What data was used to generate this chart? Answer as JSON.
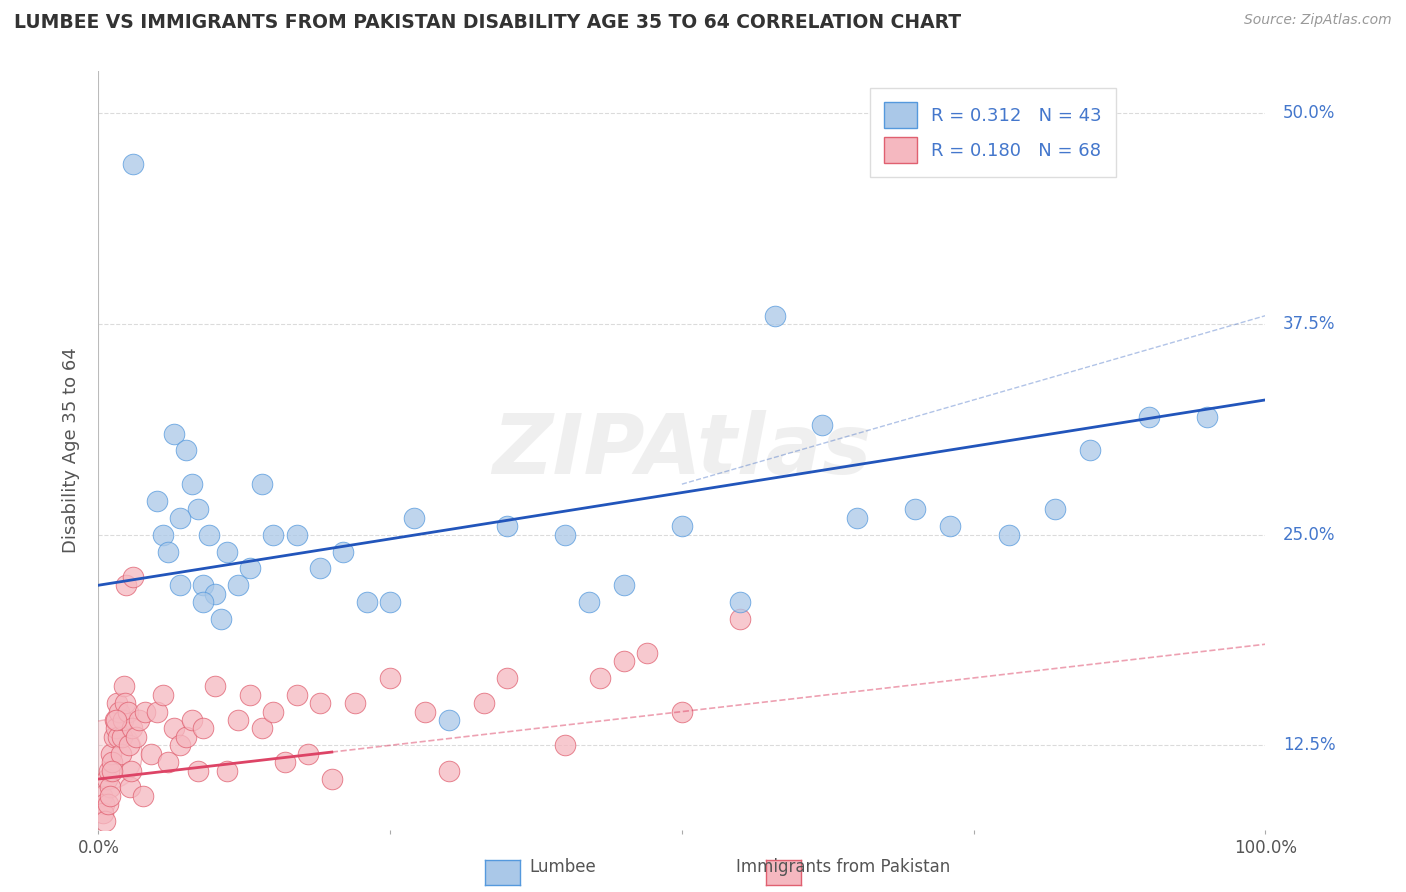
{
  "title": "LUMBEE VS IMMIGRANTS FROM PAKISTAN DISABILITY AGE 35 TO 64 CORRELATION CHART",
  "source": "Source: ZipAtlas.com",
  "ylabel": "Disability Age 35 to 64",
  "xlim": [
    0,
    100
  ],
  "ylim": [
    7.5,
    52.5
  ],
  "xticks": [
    0,
    25,
    50,
    75,
    100
  ],
  "xtick_labels": [
    "0.0%",
    "",
    "",
    "",
    "100.0%"
  ],
  "yticks": [
    12.5,
    25.0,
    37.5,
    50.0
  ],
  "ytick_labels": [
    "12.5%",
    "25.0%",
    "37.5%",
    "50.0%"
  ],
  "background_color": "#ffffff",
  "grid_color": "#cccccc",
  "lumbee_color": "#aac8e8",
  "pakistan_color": "#f5b8c0",
  "lumbee_edge_color": "#5599dd",
  "pakistan_edge_color": "#e06070",
  "lumbee_line_color": "#2255bb",
  "pakistan_line_color": "#dd4466",
  "label_color": "#4477cc",
  "lumbee_R": 0.312,
  "lumbee_N": 43,
  "pakistan_R": 0.18,
  "pakistan_N": 68,
  "watermark": "ZIPAtlas",
  "lumbee_x": [
    3.0,
    5.0,
    5.5,
    6.5,
    7.0,
    7.5,
    8.0,
    8.5,
    9.0,
    9.5,
    10.0,
    10.5,
    11.0,
    12.0,
    13.0,
    14.0,
    15.0,
    17.0,
    19.0,
    21.0,
    23.0,
    27.0,
    35.0,
    42.0,
    45.0,
    50.0,
    55.0,
    58.0,
    62.0,
    65.0,
    70.0,
    73.0,
    78.0,
    82.0,
    85.0,
    90.0,
    95.0,
    6.0,
    7.0,
    9.0,
    25.0,
    40.0,
    30.0
  ],
  "lumbee_y": [
    47.0,
    27.0,
    25.0,
    31.0,
    22.0,
    30.0,
    28.0,
    26.5,
    22.0,
    25.0,
    21.5,
    20.0,
    24.0,
    22.0,
    23.0,
    28.0,
    25.0,
    25.0,
    23.0,
    24.0,
    21.0,
    26.0,
    25.5,
    21.0,
    22.0,
    25.5,
    21.0,
    38.0,
    31.5,
    26.0,
    26.5,
    25.5,
    25.0,
    26.5,
    30.0,
    32.0,
    32.0,
    24.0,
    26.0,
    21.0,
    21.0,
    25.0,
    14.0
  ],
  "pakistan_x": [
    0.3,
    0.5,
    0.7,
    0.9,
    1.0,
    1.1,
    1.2,
    1.3,
    1.4,
    1.5,
    1.6,
    1.7,
    1.8,
    1.9,
    2.0,
    2.1,
    2.2,
    2.3,
    2.4,
    2.5,
    2.6,
    2.7,
    2.8,
    2.9,
    3.0,
    3.2,
    3.5,
    3.8,
    4.0,
    4.5,
    5.0,
    5.5,
    6.0,
    6.5,
    7.0,
    7.5,
    8.0,
    8.5,
    9.0,
    10.0,
    11.0,
    12.0,
    13.0,
    14.0,
    15.0,
    16.0,
    17.0,
    18.0,
    19.0,
    20.0,
    22.0,
    25.0,
    28.0,
    30.0,
    33.0,
    35.0,
    40.0,
    43.0,
    45.0,
    47.0,
    50.0,
    55.0,
    0.4,
    0.6,
    0.8,
    1.0,
    1.2,
    1.5
  ],
  "pakistan_y": [
    9.5,
    9.0,
    10.5,
    11.0,
    10.0,
    12.0,
    11.5,
    13.0,
    14.0,
    13.5,
    15.0,
    13.0,
    14.5,
    12.0,
    13.0,
    14.0,
    16.0,
    15.0,
    22.0,
    14.5,
    12.5,
    10.0,
    11.0,
    13.5,
    22.5,
    13.0,
    14.0,
    9.5,
    14.5,
    12.0,
    14.5,
    15.5,
    11.5,
    13.5,
    12.5,
    13.0,
    14.0,
    11.0,
    13.5,
    16.0,
    11.0,
    14.0,
    15.5,
    13.5,
    14.5,
    11.5,
    15.5,
    12.0,
    15.0,
    10.5,
    15.0,
    16.5,
    14.5,
    11.0,
    15.0,
    16.5,
    12.5,
    16.5,
    17.5,
    18.0,
    14.5,
    20.0,
    8.5,
    8.0,
    9.0,
    9.5,
    11.0,
    14.0
  ],
  "lumbee_line_start_y": 22.0,
  "lumbee_line_end_y": 33.0,
  "pakistan_line_start_y": 10.5,
  "pakistan_line_end_y": 18.5,
  "pakistan_dash_start_x": 20,
  "pakistan_dash_end_x": 100
}
